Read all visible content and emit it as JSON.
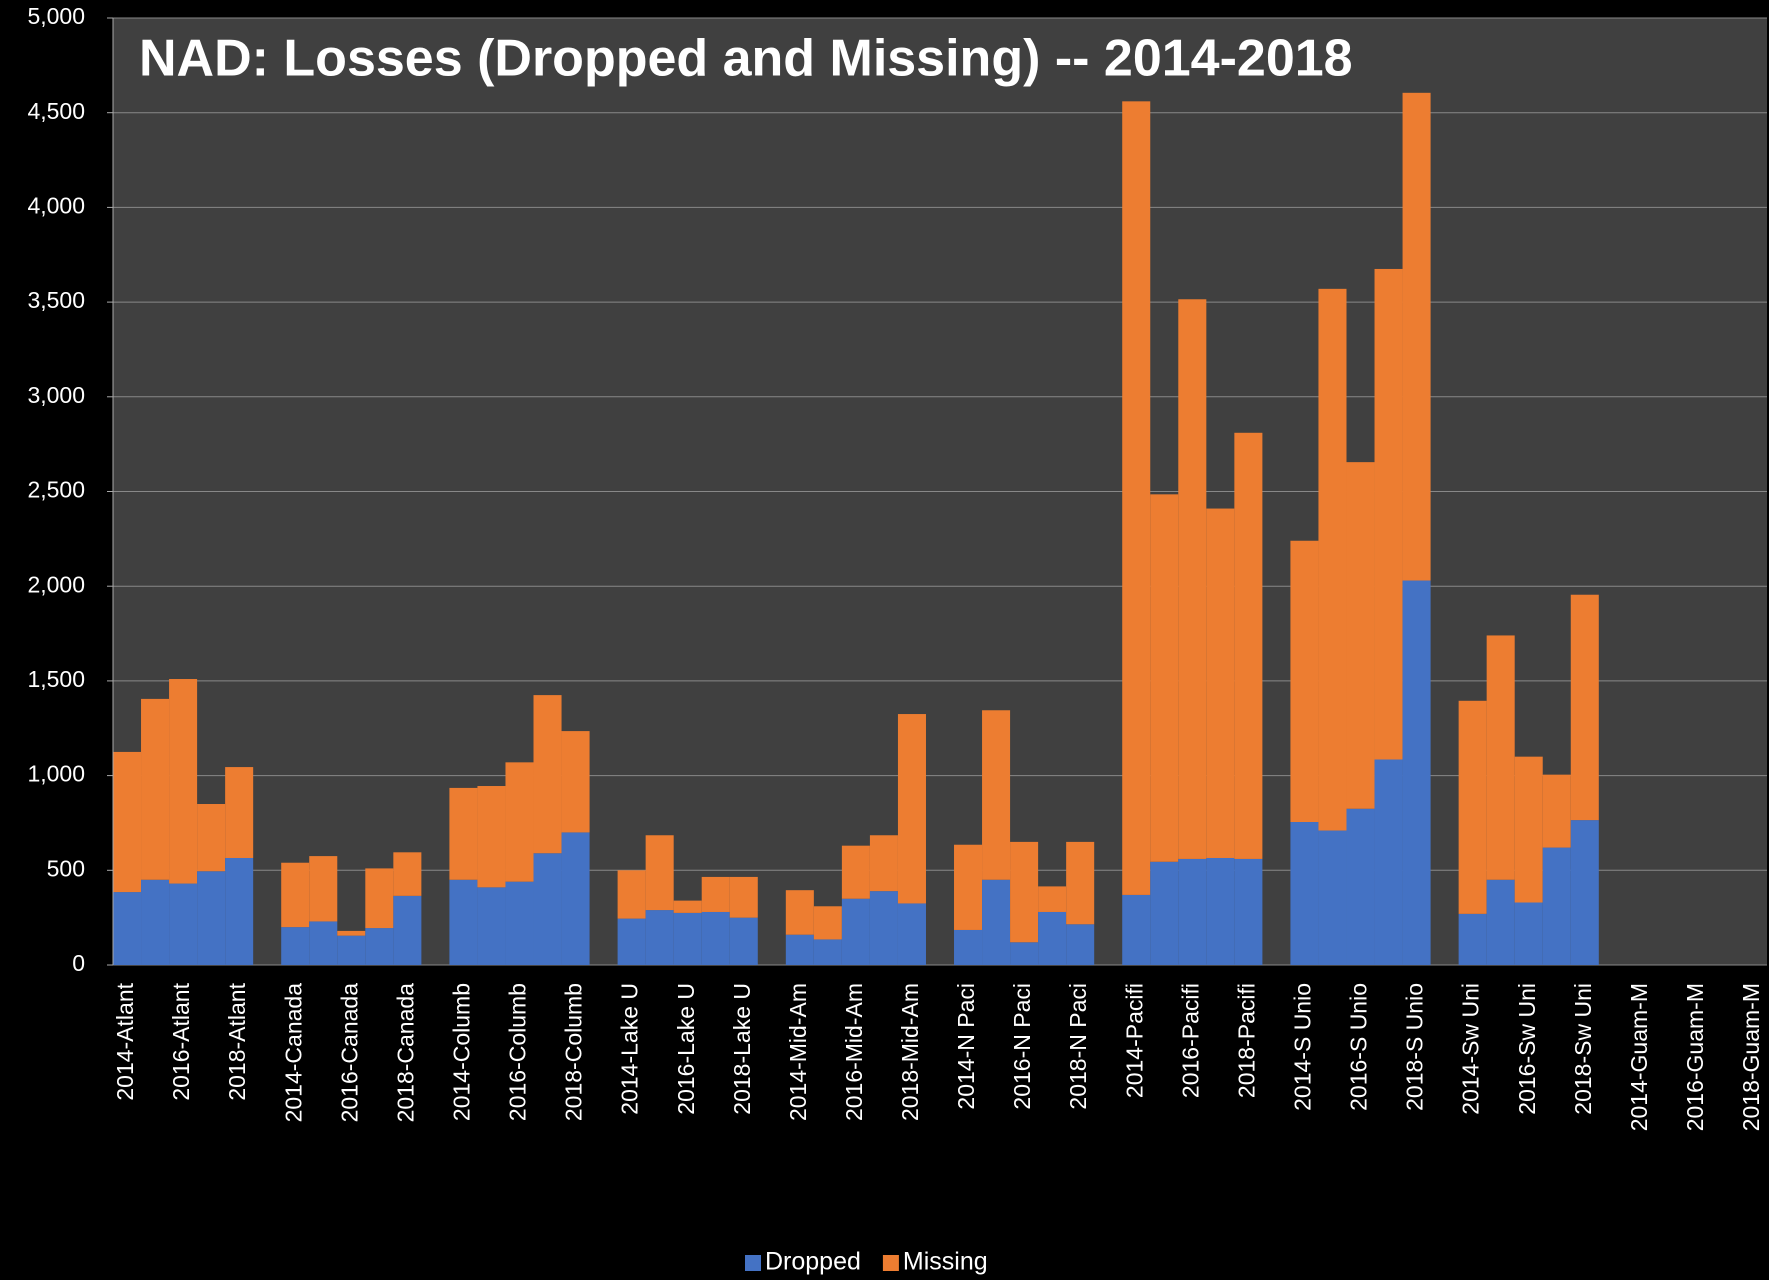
{
  "chart_data": {
    "type": "stacked_bar",
    "title": "NAD:  Losses (Dropped and Missing) -- 2014-2018",
    "categories": [
      "2014-Atlant",
      null,
      "2016-Atlant",
      null,
      "2018-Atlant",
      null,
      "2014-Canada",
      null,
      "2016-Canada",
      null,
      "2018-Canada",
      null,
      "2014-Columb",
      null,
      "2016-Columb",
      null,
      "2018-Columb",
      null,
      "2014-Lake U",
      null,
      "2016-Lake U",
      null,
      "2018-Lake U",
      null,
      "2014-Mid-Am",
      null,
      "2016-Mid-Am",
      null,
      "2018-Mid-Am",
      null,
      "2014-N Paci",
      null,
      "2016-N Paci",
      null,
      "2018-N Paci",
      null,
      "2014-Pacifi",
      null,
      "2016-Pacifi",
      null,
      "2018-Pacifi",
      null,
      "2014-S Unio",
      null,
      "2016-S Unio",
      null,
      "2018-S Unio",
      null,
      "2014-Sw Uni",
      null,
      "2016-Sw Uni",
      null,
      "2018-Sw Uni",
      null,
      "2014-Guam-M",
      null,
      "2016-Guam-M",
      null,
      "2018-Guam-M"
    ],
    "series": [
      {
        "name": "Dropped",
        "color": "#4472c4",
        "values": [
          385,
          450,
          430,
          495,
          565,
          null,
          200,
          230,
          155,
          195,
          365,
          null,
          450,
          410,
          440,
          590,
          700,
          null,
          245,
          290,
          275,
          280,
          250,
          null,
          160,
          135,
          350,
          390,
          325,
          null,
          185,
          450,
          120,
          280,
          215,
          null,
          370,
          545,
          560,
          565,
          560,
          null,
          755,
          710,
          825,
          1085,
          2030,
          null,
          270,
          450,
          330,
          620,
          765,
          null,
          0,
          0,
          0,
          0,
          0
        ]
      },
      {
        "name": "Missing",
        "color": "#ed7d31",
        "values": [
          740,
          955,
          1080,
          355,
          480,
          null,
          340,
          345,
          25,
          315,
          230,
          null,
          485,
          535,
          630,
          835,
          535,
          null,
          255,
          395,
          65,
          185,
          215,
          null,
          235,
          175,
          280,
          295,
          1000,
          null,
          450,
          895,
          530,
          135,
          435,
          null,
          4190,
          1940,
          2955,
          1845,
          2250,
          null,
          1485,
          2860,
          1830,
          2590,
          2575,
          null,
          1125,
          1290,
          770,
          385,
          1190,
          null,
          0,
          0,
          0,
          0,
          0
        ]
      }
    ],
    "ylim": [
      0,
      5000
    ],
    "yticks": [
      0,
      500,
      {
        "value": 1000,
        "label": "1,000"
      },
      {
        "value": 1500,
        "label": "1,500"
      },
      {
        "value": 2000,
        "label": "2,000"
      },
      {
        "value": 2500,
        "label": "2,500"
      },
      {
        "value": 3000,
        "label": "3,000"
      },
      {
        "value": 3500,
        "label": "3,500"
      },
      {
        "value": 4000,
        "label": "4,000"
      },
      {
        "value": 4500,
        "label": "4,500"
      },
      {
        "value": 5000,
        "label": "5,000"
      }
    ],
    "grid": true,
    "legend": "bottom"
  }
}
